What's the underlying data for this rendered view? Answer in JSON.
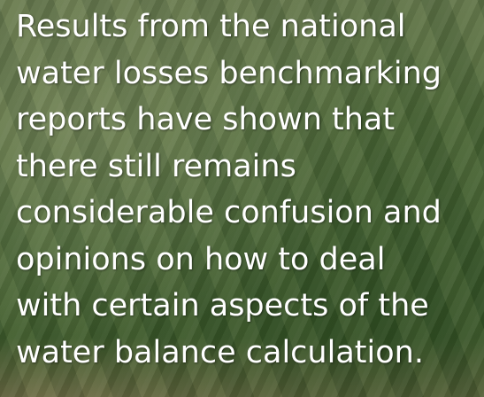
{
  "paragraph": {
    "lines": [
      "Results from the national",
      "water losses benchmarking",
      "reports have shown that",
      "there still remains",
      "considerable confusion and",
      "opinions on how to deal",
      "with certain aspects of the",
      "water balance calculation."
    ]
  }
}
